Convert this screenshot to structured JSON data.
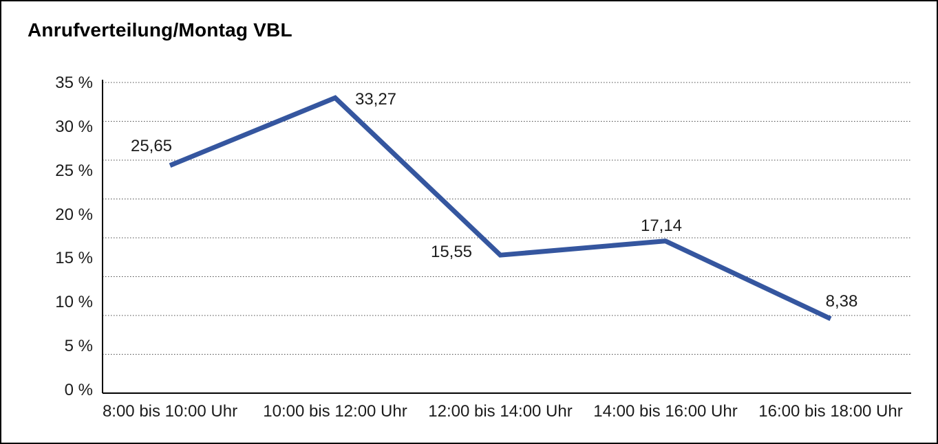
{
  "window": {
    "background_color": "#ffffff",
    "frame_color": "#000000"
  },
  "chart_data": {
    "type": "line",
    "title": "Anrufverteilung/Montag VBL",
    "categories": [
      "8:00 bis 10:00 Uhr",
      "10:00 bis 12:00 Uhr",
      "12:00 bis 14:00 Uhr",
      "14:00 bis 16:00 Uhr",
      "16:00 bis 18:00 Uhr"
    ],
    "values": [
      25.65,
      33.27,
      15.55,
      17.14,
      8.38
    ],
    "point_labels": [
      "25,65",
      "33,27",
      "15,55",
      "17,14",
      "8,38"
    ],
    "y_tick_labels": [
      "35 %",
      "30 %",
      "25 %",
      "20 %",
      "15 %",
      "10 %",
      "5 %",
      "0 %"
    ],
    "ylim": [
      0,
      35
    ],
    "xlabel": "",
    "ylabel": "",
    "legend": "none",
    "grid": "horizontal dotted, 9 lines (8 intervals), solid bottom baseline",
    "line_color": "#35569F",
    "gridline_color": "#4a4a4a",
    "axis_color": "#000000",
    "label_color": "#1c1c1c"
  }
}
